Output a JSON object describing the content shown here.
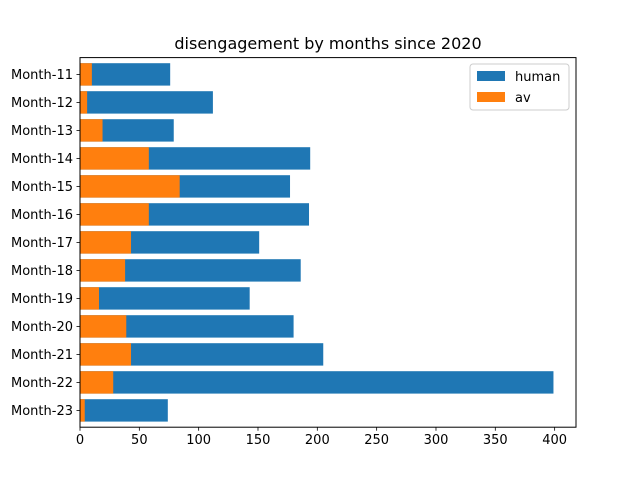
{
  "chart_data": {
    "type": "bar",
    "orientation": "horizontal",
    "stacking": "overlay",
    "title": "disengagement by months since 2020",
    "xlabel": "",
    "ylabel": "",
    "xlim": [
      0,
      418
    ],
    "xticks": [
      0,
      50,
      100,
      150,
      200,
      250,
      300,
      350,
      400
    ],
    "categories": [
      "Month-11",
      "Month-12",
      "Month-13",
      "Month-14",
      "Month-15",
      "Month-16",
      "Month-17",
      "Month-18",
      "Month-19",
      "Month-20",
      "Month-21",
      "Month-22",
      "Month-23"
    ],
    "series": [
      {
        "name": "human",
        "color": "#1f77b4",
        "values": [
          76,
          112,
          79,
          194,
          177,
          193,
          151,
          186,
          143,
          180,
          205,
          399,
          74
        ]
      },
      {
        "name": "av",
        "color": "#ff7f0e",
        "values": [
          10,
          6,
          19,
          58,
          84,
          58,
          43,
          38,
          16,
          39,
          43,
          28,
          4
        ]
      }
    ],
    "legend": {
      "placement": "top-right"
    },
    "grid": false
  }
}
